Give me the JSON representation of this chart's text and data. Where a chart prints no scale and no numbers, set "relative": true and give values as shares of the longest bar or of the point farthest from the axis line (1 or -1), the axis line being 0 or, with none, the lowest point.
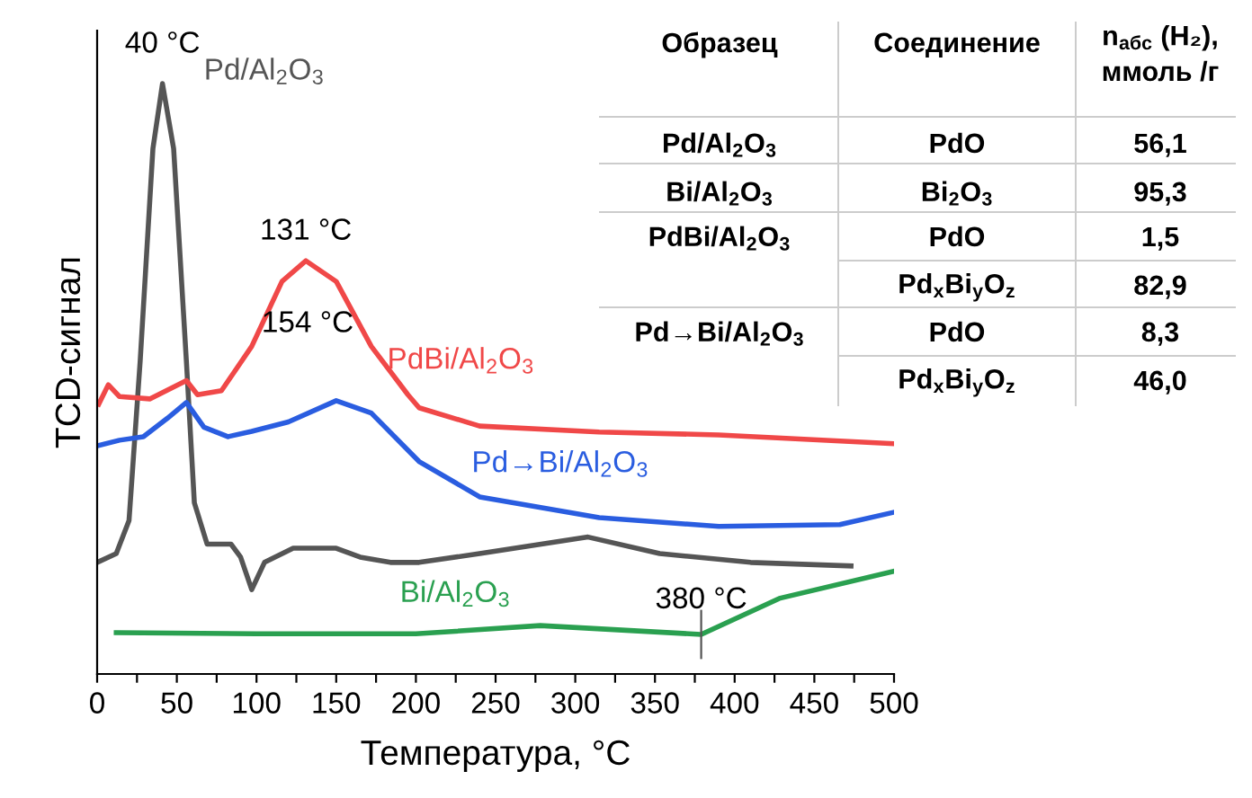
{
  "chart_data": {
    "type": "line",
    "relative": true,
    "xlabel": "Температура, °C",
    "ylabel": "TCD-сигнал",
    "xlim": [
      0,
      500
    ],
    "xticks": [
      0,
      {
        "value": 25,
        "label": null
      },
      50,
      {
        "value": 75,
        "label": null
      },
      100,
      {
        "value": 125,
        "label": null
      },
      150,
      {
        "value": 175,
        "label": null
      },
      200,
      {
        "value": 225,
        "label": null
      },
      250,
      {
        "value": 275,
        "label": null
      },
      300,
      {
        "value": 325,
        "label": null
      },
      350,
      {
        "value": 375,
        "label": null
      },
      400,
      {
        "value": 425,
        "label": null
      },
      450,
      {
        "value": 475,
        "label": null
      },
      500
    ],
    "legend": false,
    "grid": false,
    "marker": "none",
    "line_style": "solid",
    "series": [
      {
        "name": "Pd/Al$_{2}$O$_{3}$",
        "color": "#555555",
        "x": [
          0,
          12,
          20,
          27,
          35,
          41,
          48,
          56,
          61,
          69,
          84,
          90,
          97,
          105,
          123,
          150,
          165,
          184,
          202,
          240,
          308,
          353,
          410,
          473
        ],
        "values": [
          0.189,
          0.204,
          0.26,
          0.53,
          0.89,
          1.0,
          0.89,
          0.53,
          0.29,
          0.22,
          0.22,
          0.198,
          0.143,
          0.189,
          0.213,
          0.213,
          0.198,
          0.189,
          0.189,
          0.204,
          0.232,
          0.204,
          0.189,
          0.183
        ]
      },
      {
        "name": "PdBi/Al$_{2}$O$_{3}$",
        "color": "#f04848",
        "x": [
          1,
          7,
          14,
          33,
          56,
          63,
          78,
          97,
          116,
          131,
          150,
          172,
          195,
          202,
          240,
          315,
          390,
          500
        ],
        "values": [
          0.457,
          0.49,
          0.47,
          0.466,
          0.497,
          0.473,
          0.48,
          0.555,
          0.665,
          0.7,
          0.665,
          0.555,
          0.473,
          0.451,
          0.42,
          0.41,
          0.405,
          0.39
        ]
      },
      {
        "name": "Pd→Bi/Al$_{2}$O$_{3}$",
        "color": "#2a5de0",
        "x": [
          1,
          14,
          29,
          44,
          56,
          67,
          82,
          97,
          120,
          150,
          172,
          202,
          240,
          315,
          390,
          466,
          500
        ],
        "values": [
          0.387,
          0.396,
          0.402,
          0.433,
          0.46,
          0.418,
          0.402,
          0.411,
          0.427,
          0.463,
          0.442,
          0.36,
          0.3,
          0.265,
          0.25,
          0.253,
          0.274
        ]
      },
      {
        "name": "Bi/Al$_{2}$O$_{3}$",
        "color": "#2aa050",
        "x": [
          12,
          100,
          200,
          278,
          379,
          428,
          500
        ],
        "values": [
          0.07,
          0.068,
          0.068,
          0.082,
          0.067,
          0.128,
          0.174
        ]
      }
    ],
    "annotations": [
      {
        "text": "40 °C",
        "x": 41,
        "y": 1.0
      },
      {
        "text": "131 °C",
        "x": 131,
        "y": 0.7
      },
      {
        "text": "154 °C",
        "x": 154,
        "y": 0.463
      },
      {
        "text": "380 °C",
        "x": 379,
        "y": 0.067
      },
      "Образец",
      "Соединение",
      "n$_{абс}$ (H₂),\nммоль /г",
      "Pd/Al$_{2}$O$_{3}$",
      "PdO",
      "56,1",
      "Bi/Al$_{2}$O$_{3}$",
      "Bi$_{2}$O$_{3}$",
      "95,3",
      "PdBi/Al$_{2}$O$_{3}$",
      "PdO",
      "1,5",
      "Pd$_{x}$Bi$_{y}$O$_{z}$",
      "82,9",
      "Pd→Bi/Al$_{2}$O$_{3}$",
      "PdO",
      "8,3",
      "Pd$_{x}$Bi$_{y}$O$_{z}$",
      "46,0"
    ]
  }
}
